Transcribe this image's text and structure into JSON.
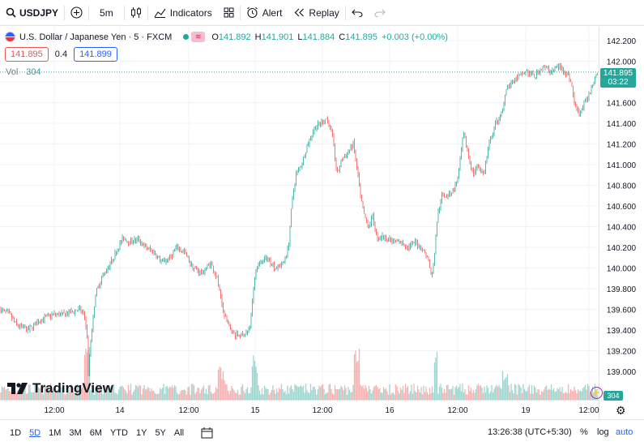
{
  "toolbar": {
    "symbol": "USDJPY",
    "interval": "5m",
    "indicators_label": "Indicators",
    "alert_label": "Alert",
    "replay_label": "Replay"
  },
  "legend": {
    "title": "U.S. Dollar / Japanese Yen · 5 · FXCM",
    "market_icon_text": "≋",
    "open_key": "O",
    "open": "141.892",
    "high_key": "H",
    "high": "141.901",
    "low_key": "L",
    "low": "141.884",
    "close_key": "C",
    "close": "141.895",
    "change": "+0.003 (+0.00%)"
  },
  "quote": {
    "bid": "141.895",
    "spread": "0.4",
    "ask": "141.899"
  },
  "volume": {
    "label": "Vol",
    "value": "304"
  },
  "price_tag": {
    "price": "141.895",
    "countdown": "03:22"
  },
  "vol_tag": "304",
  "logo_text": "TradingView",
  "bottombar": {
    "ranges": [
      "1D",
      "5D",
      "1M",
      "3M",
      "6M",
      "YTD",
      "1Y",
      "5Y",
      "All"
    ],
    "active_range": "5D",
    "clock": "13:26:38 (UTC+5:30)",
    "percent_label": "%",
    "log_label": "log",
    "auto_label": "auto"
  },
  "colors": {
    "up": "#26a69a",
    "down": "#ef5350",
    "accent": "#2962ff"
  },
  "chart_data": {
    "type": "candlestick",
    "symbol": "USDJPY",
    "interval": "5m",
    "x_tick_labels": [
      "12:00",
      "14",
      "12:00",
      "15",
      "12:00",
      "16",
      "12:00",
      "19",
      "12:00"
    ],
    "y_tick_labels": [
      "139.000",
      "139.200",
      "139.400",
      "139.600",
      "139.800",
      "140.000",
      "140.200",
      "140.400",
      "140.600",
      "140.800",
      "141.000",
      "141.200",
      "141.400",
      "141.600",
      "141.800",
      "142.000",
      "142.200"
    ],
    "ylim": [
      138.75,
      142.25
    ],
    "grid": true,
    "close_series": [
      [
        0,
        139.6
      ],
      [
        12,
        139.55
      ],
      [
        20,
        139.45
      ],
      [
        35,
        139.4
      ],
      [
        50,
        139.5
      ],
      [
        65,
        139.55
      ],
      [
        80,
        139.55
      ],
      [
        98,
        139.6
      ],
      [
        104,
        139.55
      ],
      [
        107,
        139.4
      ],
      [
        109,
        139.0
      ],
      [
        112,
        139.3
      ],
      [
        118,
        139.75
      ],
      [
        125,
        139.9
      ],
      [
        133,
        140.0
      ],
      [
        140,
        140.1
      ],
      [
        146,
        140.2
      ],
      [
        152,
        140.3
      ],
      [
        160,
        140.25
      ],
      [
        170,
        140.28
      ],
      [
        180,
        140.2
      ],
      [
        190,
        140.15
      ],
      [
        200,
        140.05
      ],
      [
        210,
        140.1
      ],
      [
        218,
        140.2
      ],
      [
        228,
        140.15
      ],
      [
        238,
        140.0
      ],
      [
        250,
        139.95
      ],
      [
        260,
        140.05
      ],
      [
        268,
        139.9
      ],
      [
        275,
        139.6
      ],
      [
        282,
        139.45
      ],
      [
        290,
        139.35
      ],
      [
        300,
        139.35
      ],
      [
        308,
        139.4
      ],
      [
        312,
        139.7
      ],
      [
        316,
        140.0
      ],
      [
        322,
        140.05
      ],
      [
        330,
        140.1
      ],
      [
        340,
        140.0
      ],
      [
        350,
        140.05
      ],
      [
        356,
        140.2
      ],
      [
        360,
        140.6
      ],
      [
        365,
        140.9
      ],
      [
        372,
        141.0
      ],
      [
        380,
        141.2
      ],
      [
        388,
        141.35
      ],
      [
        396,
        141.4
      ],
      [
        403,
        141.45
      ],
      [
        410,
        141.3
      ],
      [
        416,
        140.9
      ],
      [
        422,
        141.05
      ],
      [
        428,
        141.1
      ],
      [
        436,
        141.2
      ],
      [
        440,
        141.0
      ],
      [
        445,
        140.7
      ],
      [
        450,
        140.5
      ],
      [
        455,
        140.4
      ],
      [
        460,
        140.5
      ],
      [
        465,
        140.3
      ],
      [
        475,
        140.3
      ],
      [
        485,
        140.25
      ],
      [
        495,
        140.25
      ],
      [
        505,
        140.2
      ],
      [
        512,
        140.25
      ],
      [
        520,
        140.2
      ],
      [
        528,
        140.1
      ],
      [
        533,
        139.9
      ],
      [
        536,
        140.1
      ],
      [
        540,
        140.5
      ],
      [
        545,
        140.7
      ],
      [
        552,
        140.7
      ],
      [
        560,
        140.75
      ],
      [
        566,
        140.9
      ],
      [
        572,
        141.3
      ],
      [
        578,
        141.1
      ],
      [
        584,
        140.9
      ],
      [
        590,
        141.0
      ],
      [
        597,
        140.9
      ],
      [
        604,
        141.2
      ],
      [
        612,
        141.4
      ],
      [
        620,
        141.5
      ],
      [
        626,
        141.75
      ],
      [
        632,
        141.8
      ],
      [
        640,
        141.85
      ],
      [
        650,
        141.9
      ],
      [
        660,
        141.85
      ],
      [
        670,
        141.95
      ],
      [
        680,
        141.9
      ],
      [
        690,
        141.95
      ],
      [
        698,
        141.9
      ],
      [
        705,
        141.8
      ],
      [
        710,
        141.55
      ],
      [
        716,
        141.5
      ],
      [
        722,
        141.6
      ],
      [
        728,
        141.7
      ],
      [
        734,
        141.85
      ],
      [
        738,
        141.895
      ]
    ]
  }
}
